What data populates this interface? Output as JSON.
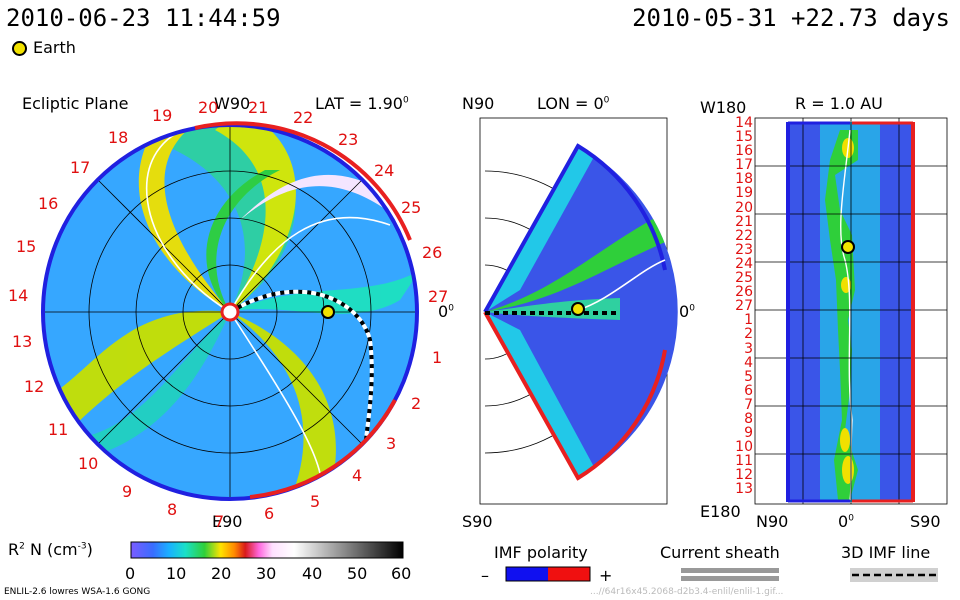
{
  "header": {
    "datetime": "2010-06-23 11:44:59",
    "reference": "2010-05-31 +22.73 days",
    "legend_earth": "Earth"
  },
  "panel_ecliptic": {
    "title": "Ecliptic Plane",
    "lat_label": "LAT = 1.90",
    "lat_sup": "0",
    "top_label": "W90",
    "bottom_label": "E90",
    "right_label": "0",
    "right_sup": "0",
    "numbers": [
      "19",
      "20",
      "21",
      "22",
      "23",
      "24",
      "25",
      "26",
      "27",
      "1",
      "2",
      "3",
      "4",
      "5",
      "6",
      "7",
      "8",
      "9",
      "10",
      "11",
      "12",
      "13",
      "14",
      "15",
      "16",
      "17",
      "18"
    ]
  },
  "panel_meridional": {
    "title": "LON = 0",
    "title_sup": "0",
    "top_label": "N90",
    "bottom_label": "S90",
    "right_label": "0",
    "right_sup": "0"
  },
  "panel_radial": {
    "title": "R = 1.0 AU",
    "top_left": "W180",
    "bottom_left": "E180",
    "xaxis_left": "N90",
    "xaxis_mid": "0",
    "xaxis_mid_sup": "0",
    "xaxis_right": "S90",
    "numbers": [
      "14",
      "15",
      "16",
      "17",
      "18",
      "19",
      "20",
      "21",
      "22",
      "23",
      "24",
      "25",
      "26",
      "27",
      "1",
      "2",
      "3",
      "4",
      "5",
      "6",
      "7",
      "8",
      "9",
      "10",
      "11",
      "12",
      "13"
    ]
  },
  "colorbar": {
    "label": "R  N (cm  )",
    "label_sup1": "2",
    "label_sup2": "-3",
    "ticks": [
      "0",
      "10",
      "20",
      "30",
      "40",
      "50",
      "60"
    ],
    "colors": [
      "#7a5cff",
      "#3a6dff",
      "#1ab0ff",
      "#19e0c8",
      "#2fcf3a",
      "#b8e000",
      "#ffe300",
      "#ff8a00",
      "#d81a1a",
      "#c01050",
      "#ff66dd",
      "#ffc8ff",
      "#ffffff",
      "#c0c0c0",
      "#808080",
      "#303030",
      "#000000"
    ]
  },
  "legends": {
    "imf_polarity": "IMF polarity",
    "minus": "–",
    "plus": "+",
    "current_sheath": "Current sheath",
    "imf_line": "3D IMF line"
  },
  "footer": {
    "credit": "ENLIL-2.6 lowres WSA-1.6 GONG",
    "run_id": "...//64r16x45.2068-d2b3.4-enlil/enlil-1.gif..."
  }
}
